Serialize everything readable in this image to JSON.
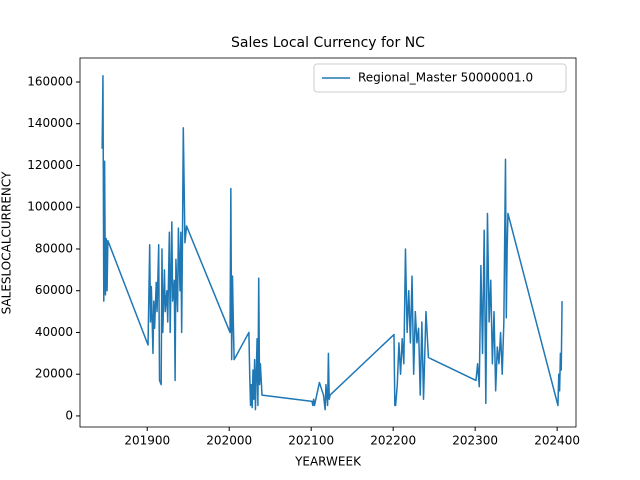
{
  "chart_data": {
    "type": "line",
    "title": "Sales Local Currency for NC",
    "x_label": "YEARWEEK",
    "y_label": "SALESLOCALCURRENCY",
    "x": [
      201845,
      201846,
      201847,
      201848,
      201849,
      201850,
      201851,
      201852,
      201901,
      201903,
      201904,
      201905,
      201907,
      201908,
      201909,
      201911,
      201912,
      201914,
      201915,
      201917,
      201918,
      201919,
      201921,
      201922,
      201924,
      201925,
      201927,
      201928,
      201930,
      201931,
      201933,
      201934,
      201935,
      201937,
      201938,
      201940,
      201941,
      201942,
      201943,
      201944,
      201946,
      201948,
      201949,
      202001,
      202002,
      202003,
      202004,
      202005,
      202006,
      202024,
      202025,
      202026,
      202027,
      202028,
      202029,
      202030,
      202031,
      202032,
      202033,
      202034,
      202035,
      202036,
      202037,
      202038,
      202040,
      202101,
      202102,
      202103,
      202104,
      202110,
      202115,
      202117,
      202118,
      202120,
      202121,
      202122,
      202123,
      202201,
      202202,
      202203,
      202205,
      202207,
      202209,
      202211,
      202213,
      202215,
      202217,
      202219,
      202221,
      202223,
      202225,
      202227,
      202229,
      202231,
      202233,
      202235,
      202237,
      202240,
      202243,
      202248,
      202301,
      202303,
      202305,
      202307,
      202309,
      202311,
      202313,
      202315,
      202317,
      202319,
      202321,
      202323,
      202325,
      202327,
      202329,
      202331,
      202333,
      202335,
      202337,
      202338,
      202339,
      202340,
      202401,
      202402,
      202403,
      202404,
      202405,
      202406
    ],
    "series": [
      {
        "name": "Regional_Master 50000001.0",
        "color": "#1f77b4",
        "values": [
          128000,
          163000,
          55000,
          122000,
          58000,
          85000,
          60000,
          84000,
          34000,
          82000,
          45000,
          62000,
          30000,
          55000,
          42000,
          64000,
          50000,
          82000,
          17000,
          15000,
          80000,
          40000,
          70000,
          50000,
          60000,
          45000,
          88000,
          40000,
          93000,
          55000,
          65000,
          17000,
          75000,
          50000,
          90000,
          60000,
          88000,
          40000,
          85000,
          138000,
          83000,
          91000,
          90000,
          40000,
          109000,
          27000,
          67000,
          45000,
          27000,
          40000,
          20000,
          5000,
          15000,
          4000,
          22000,
          8000,
          27000,
          3000,
          20000,
          37000,
          5000,
          66000,
          15000,
          25000,
          10000,
          7000,
          5000,
          8000,
          5000,
          16000,
          10000,
          3000,
          15000,
          5000,
          30000,
          8000,
          10000,
          39000,
          5000,
          5000,
          15000,
          35000,
          20000,
          37000,
          25000,
          80000,
          40000,
          60000,
          35000,
          67000,
          20000,
          50000,
          35000,
          42000,
          10000,
          45000,
          8000,
          50000,
          28000,
          27000,
          17000,
          25000,
          14000,
          72000,
          30000,
          89000,
          6000,
          97000,
          45000,
          65000,
          25000,
          50000,
          12000,
          33000,
          25000,
          40000,
          20000,
          45000,
          123000,
          47000,
          80000,
          97000,
          5000,
          20000,
          12000,
          30000,
          22000,
          55000
        ]
      }
    ],
    "xlim": [
      201818,
      202423
    ],
    "ylim": [
      -5300,
      171500
    ],
    "xticks": [
      201900,
      202000,
      202100,
      202200,
      202300,
      202400
    ],
    "yticks": [
      0,
      20000,
      40000,
      60000,
      80000,
      100000,
      120000,
      140000,
      160000
    ],
    "legend": "upper right"
  }
}
